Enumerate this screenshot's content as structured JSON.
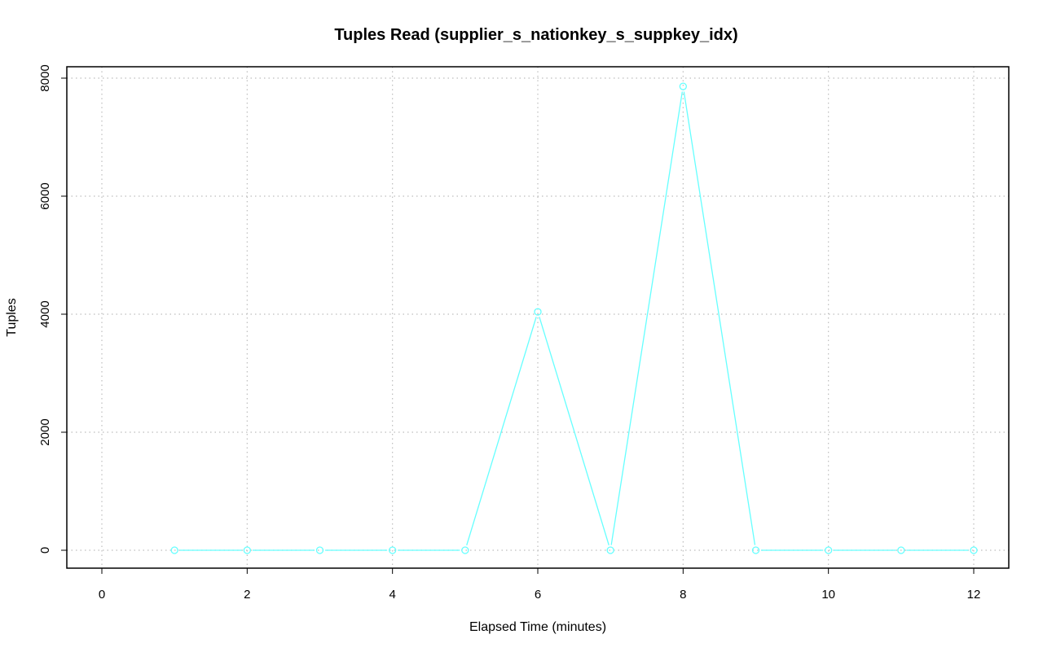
{
  "chart_data": {
    "type": "line",
    "title": "Tuples Read (supplier_s_nationkey_s_suppkey_idx)",
    "xlabel": "Elapsed Time (minutes)",
    "ylabel": "Tuples",
    "xlim": [
      0,
      12
    ],
    "ylim": [
      0,
      8000
    ],
    "x_ticks": [
      0,
      2,
      4,
      6,
      8,
      10,
      12
    ],
    "y_ticks": [
      0,
      2000,
      4000,
      6000,
      8000
    ],
    "grid": true,
    "legend": "none",
    "series": [
      {
        "color": "#66ffff",
        "marker": "open-circle",
        "x": [
          1,
          2,
          3,
          4,
          5,
          6,
          7,
          8,
          9,
          10,
          11,
          12
        ],
        "values": [
          0,
          0,
          0,
          0,
          0,
          4040,
          0,
          7860,
          0,
          0,
          0,
          0
        ]
      }
    ]
  }
}
